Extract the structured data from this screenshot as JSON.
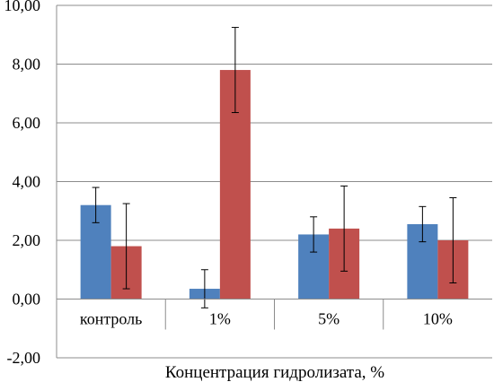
{
  "chart_data": {
    "type": "bar",
    "title": "",
    "xlabel": "Концентрация гидролизата, %",
    "ylabel": "",
    "ylim": [
      -2,
      10
    ],
    "yticks": [
      -2,
      0,
      2,
      4,
      6,
      8,
      10
    ],
    "ytick_labels": [
      "-2,00",
      "0,00",
      "2,00",
      "4,00",
      "6,00",
      "8,00",
      "10,00"
    ],
    "categories": [
      "контроль",
      "1%",
      "5%",
      "10%"
    ],
    "grid": "horizontal",
    "legend": "none",
    "series": [
      {
        "color": "#4f81bd",
        "values": [
          3.2,
          0.35,
          2.2,
          2.55
        ],
        "errors": [
          0.6,
          0.65,
          0.6,
          0.6
        ]
      },
      {
        "color": "#c0504d",
        "values": [
          1.8,
          7.8,
          2.4,
          2.0
        ],
        "errors": [
          1.45,
          1.45,
          1.45,
          1.45
        ]
      }
    ]
  }
}
